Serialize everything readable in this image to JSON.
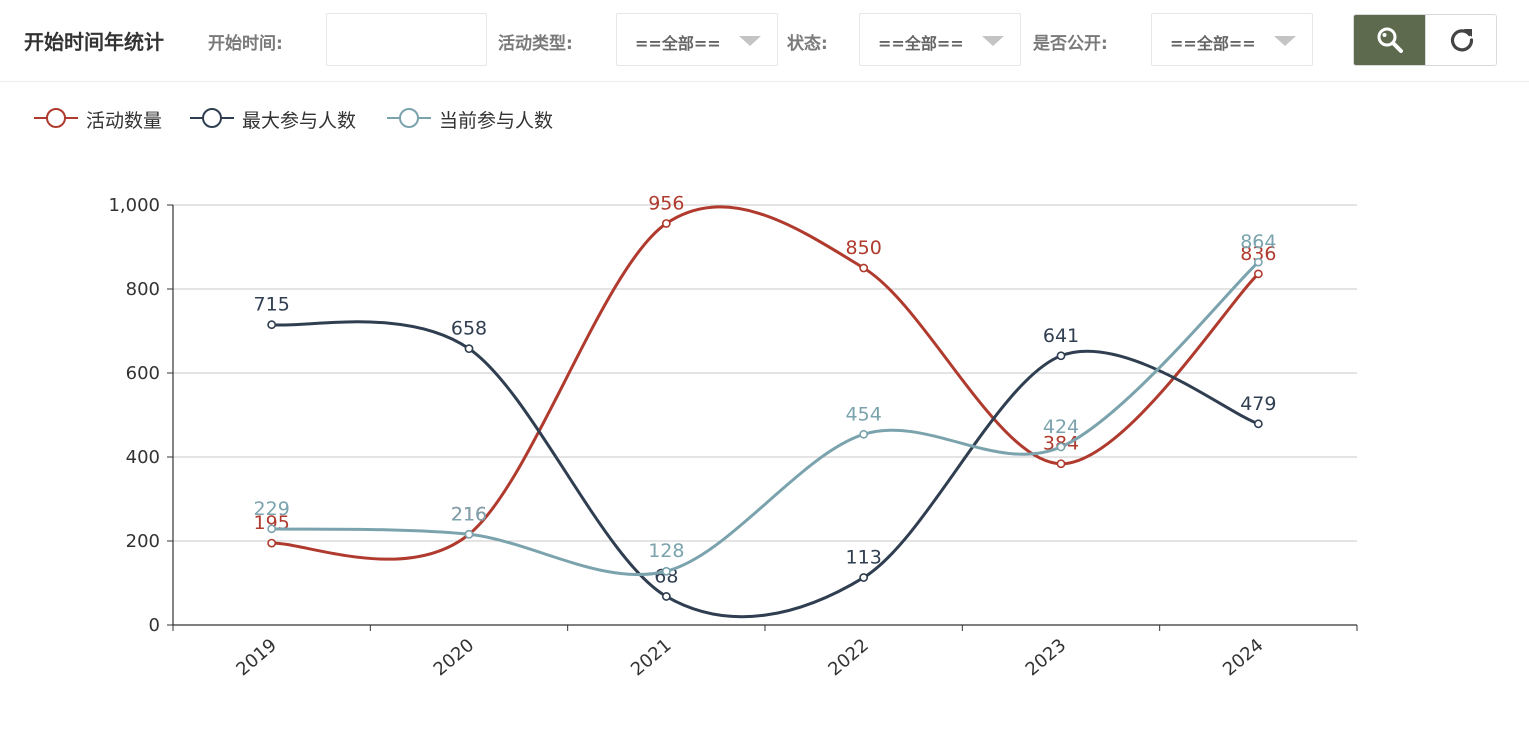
{
  "header": {
    "title": "开始时间年统计",
    "filters": {
      "start_time_label": "开始时间:",
      "start_time_value": "",
      "activity_type_label": "活动类型:",
      "activity_type_value": "==全部==",
      "status_label": "状态:",
      "status_value": "==全部==",
      "public_label": "是否公开:",
      "public_value": "==全部=="
    },
    "buttons": {
      "search_icon": "search-icon",
      "refresh_icon": "refresh-icon"
    },
    "accent_color": "#5d6a4e"
  },
  "chart_data": {
    "type": "line",
    "smooth": true,
    "categories": [
      "2019",
      "2020",
      "2021",
      "2022",
      "2023",
      "2024"
    ],
    "series": [
      {
        "name": "活动数量",
        "color": "#b03a2e",
        "values": [
          195,
          216,
          956,
          850,
          384,
          836
        ]
      },
      {
        "name": "最大参与人数",
        "color": "#2f3e50",
        "values": [
          715,
          658,
          68,
          113,
          641,
          479
        ]
      },
      {
        "name": "当前参与人数",
        "color": "#7ba3ae",
        "values": [
          229,
          216,
          128,
          454,
          424,
          864
        ]
      }
    ],
    "ylim": [
      0,
      1000
    ],
    "yticks": [
      "0",
      "200",
      "400",
      "600",
      "800",
      "1,000"
    ],
    "grid": true,
    "legend_position": "top-left",
    "show_data_labels": true
  }
}
